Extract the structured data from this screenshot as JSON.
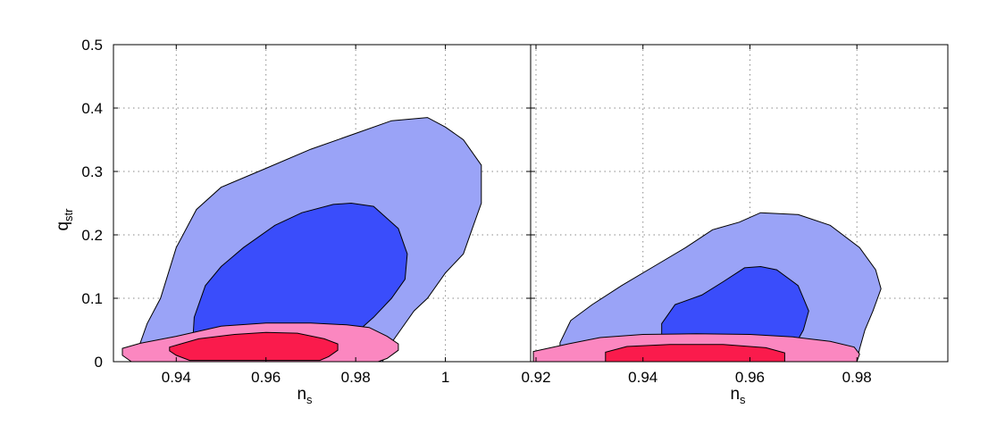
{
  "chart_data": {
    "type": "contour",
    "colors": {
      "blue_outer": "#9aa3f7",
      "blue_inner": "#3a4dfb",
      "red_outer": "#fb87c0",
      "red_inner": "#fa1b4c"
    },
    "y_axis": {
      "label_main": "q",
      "label_sub": "str",
      "ylim": [
        0,
        0.5
      ],
      "ticks": [
        0,
        0.1,
        0.2,
        0.3,
        0.4,
        0.5
      ],
      "tick_labels": [
        "0",
        "0.1",
        "0.2",
        "0.3",
        "0.4",
        "0.5"
      ]
    },
    "grid": true,
    "panels": [
      {
        "xlabel_main": "n",
        "xlabel_sub": "s",
        "xlim": [
          0.926,
          1.019
        ],
        "xticks": [
          0.94,
          0.96,
          0.98,
          1.0
        ],
        "xtick_labels": [
          "0.94",
          "0.96",
          "0.98",
          "1"
        ],
        "contours": [
          {
            "color": "blue_outer",
            "points": [
              [
                0.9305,
                0
              ],
              [
                0.9335,
                0.06
              ],
              [
                0.9365,
                0.1
              ],
              [
                0.94,
                0.18
              ],
              [
                0.9445,
                0.24
              ],
              [
                0.95,
                0.275
              ],
              [
                0.96,
                0.305
              ],
              [
                0.97,
                0.335
              ],
              [
                0.98,
                0.36
              ],
              [
                0.988,
                0.38
              ],
              [
                0.996,
                0.385
              ],
              [
                1.0,
                0.37
              ],
              [
                1.004,
                0.35
              ],
              [
                1.008,
                0.31
              ],
              [
                1.008,
                0.25
              ],
              [
                1.006,
                0.21
              ],
              [
                1.004,
                0.17
              ],
              [
                1.0,
                0.14
              ],
              [
                0.996,
                0.1
              ],
              [
                0.993,
                0.08
              ],
              [
                0.99,
                0.05
              ],
              [
                0.987,
                0.02
              ],
              [
                0.986,
                0
              ]
            ]
          },
          {
            "color": "blue_inner",
            "points": [
              [
                0.9435,
                0.01
              ],
              [
                0.944,
                0.07
              ],
              [
                0.9465,
                0.12
              ],
              [
                0.95,
                0.15
              ],
              [
                0.955,
                0.18
              ],
              [
                0.962,
                0.215
              ],
              [
                0.968,
                0.235
              ],
              [
                0.975,
                0.248
              ],
              [
                0.979,
                0.25
              ],
              [
                0.984,
                0.245
              ],
              [
                0.9895,
                0.21
              ],
              [
                0.9915,
                0.17
              ],
              [
                0.991,
                0.13
              ],
              [
                0.988,
                0.1
              ],
              [
                0.984,
                0.07
              ],
              [
                0.98,
                0.045
              ],
              [
                0.976,
                0.025
              ],
              [
                0.974,
                0.01
              ]
            ]
          },
          {
            "color": "red_outer",
            "points": [
              [
                0.928,
                0.021
              ],
              [
                0.932,
                0.029
              ],
              [
                0.94,
                0.04
              ],
              [
                0.95,
                0.056
              ],
              [
                0.96,
                0.061
              ],
              [
                0.97,
                0.061
              ],
              [
                0.978,
                0.058
              ],
              [
                0.983,
                0.054
              ],
              [
                0.987,
                0.04
              ],
              [
                0.9895,
                0.028
              ],
              [
                0.9895,
                0.018
              ],
              [
                0.987,
                0.005
              ],
              [
                0.985,
                0
              ],
              [
                0.93,
                0
              ],
              [
                0.928,
                0.01
              ]
            ]
          },
          {
            "color": "red_inner",
            "points": [
              [
                0.9385,
                0.023
              ],
              [
                0.941,
                0.028
              ],
              [
                0.945,
                0.036
              ],
              [
                0.953,
                0.043
              ],
              [
                0.96,
                0.046
              ],
              [
                0.967,
                0.045
              ],
              [
                0.973,
                0.036
              ],
              [
                0.976,
                0.028
              ],
              [
                0.976,
                0.018
              ],
              [
                0.974,
                0.008
              ],
              [
                0.972,
                0.002
              ],
              [
                0.943,
                0.002
              ],
              [
                0.94,
                0.01
              ],
              [
                0.9385,
                0.017
              ]
            ]
          }
        ]
      },
      {
        "xlabel_main": "n",
        "xlabel_sub": "s",
        "xlim": [
          0.919,
          0.997
        ],
        "xticks": [
          0.92,
          0.94,
          0.96,
          0.98
        ],
        "xtick_labels": [
          "0.92",
          "0.94",
          "0.96",
          "0.98"
        ],
        "contours": [
          {
            "color": "blue_outer",
            "points": [
              [
                0.9245,
                0
              ],
              [
                0.9245,
                0.03
              ],
              [
                0.9265,
                0.065
              ],
              [
                0.9305,
                0.09
              ],
              [
                0.936,
                0.12
              ],
              [
                0.942,
                0.15
              ],
              [
                0.948,
                0.18
              ],
              [
                0.953,
                0.208
              ],
              [
                0.958,
                0.22
              ],
              [
                0.962,
                0.235
              ],
              [
                0.969,
                0.232
              ],
              [
                0.975,
                0.215
              ],
              [
                0.9805,
                0.18
              ],
              [
                0.9835,
                0.145
              ],
              [
                0.9845,
                0.115
              ],
              [
                0.983,
                0.08
              ],
              [
                0.9815,
                0.05
              ],
              [
                0.9805,
                0.02
              ],
              [
                0.98,
                0
              ]
            ]
          },
          {
            "color": "blue_inner",
            "points": [
              [
                0.9435,
                0.01
              ],
              [
                0.9435,
                0.06
              ],
              [
                0.946,
                0.09
              ],
              [
                0.951,
                0.105
              ],
              [
                0.955,
                0.126
              ],
              [
                0.959,
                0.148
              ],
              [
                0.962,
                0.15
              ],
              [
                0.965,
                0.145
              ],
              [
                0.969,
                0.12
              ],
              [
                0.971,
                0.08
              ],
              [
                0.97,
                0.05
              ],
              [
                0.968,
                0.02
              ],
              [
                0.966,
                0.01
              ]
            ]
          },
          {
            "color": "red_outer",
            "points": [
              [
                0.9195,
                0.016
              ],
              [
                0.926,
                0.028
              ],
              [
                0.932,
                0.038
              ],
              [
                0.94,
                0.043
              ],
              [
                0.95,
                0.044
              ],
              [
                0.96,
                0.043
              ],
              [
                0.968,
                0.039
              ],
              [
                0.975,
                0.032
              ],
              [
                0.9795,
                0.023
              ],
              [
                0.9805,
                0.012
              ],
              [
                0.98,
                0
              ],
              [
                0.9195,
                0
              ]
            ]
          },
          {
            "color": "red_inner",
            "points": [
              [
                0.933,
                0.005
              ],
              [
                0.933,
                0.015
              ],
              [
                0.937,
                0.024
              ],
              [
                0.945,
                0.027
              ],
              [
                0.955,
                0.027
              ],
              [
                0.963,
                0.022
              ],
              [
                0.9665,
                0.014
              ],
              [
                0.9665,
                0.005
              ],
              [
                0.9665,
                0
              ],
              [
                0.933,
                0
              ]
            ]
          }
        ]
      }
    ]
  }
}
